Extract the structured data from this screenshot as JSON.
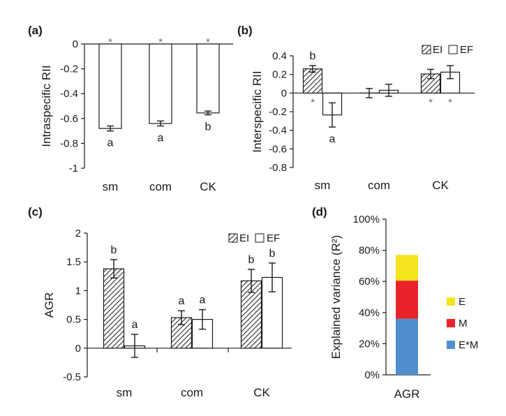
{
  "chart_data": [
    {
      "panel": "(a)",
      "type": "bar",
      "ylabel": "Intraspecific RII",
      "ylim": [
        -1,
        0
      ],
      "yticks": [
        "0",
        "-0.2",
        "-0.4",
        "-0.6",
        "-0.8",
        "-1"
      ],
      "categories": [
        "sm",
        "com",
        "CK"
      ],
      "series": [
        {
          "pattern": "open",
          "values": [
            -0.68,
            -0.64,
            -0.555
          ],
          "errors": [
            0.02,
            0.02,
            0.015
          ],
          "letters": [
            "a",
            "a",
            "b"
          ],
          "stars": [
            "*",
            "*",
            "*"
          ]
        }
      ]
    },
    {
      "panel": "(b)",
      "type": "bar",
      "ylabel": "Interspecific RII",
      "ylim": [
        -0.8,
        0.4
      ],
      "yticks": [
        "0.4",
        "0.2",
        "0",
        "-0.2",
        "-0.4",
        "-0.6",
        "-0.8"
      ],
      "categories": [
        "sm",
        "com",
        "CK"
      ],
      "legend": [
        "EI",
        "EF"
      ],
      "series": [
        {
          "name": "EI",
          "pattern": "hatched",
          "values": [
            0.26,
            0.0,
            0.205
          ],
          "errors": [
            0.035,
            0.05,
            0.05
          ],
          "letters": [
            "b",
            "",
            ""
          ],
          "stars": [
            "*",
            "",
            "*"
          ]
        },
        {
          "name": "EF",
          "pattern": "open",
          "values": [
            -0.235,
            0.03,
            0.225
          ],
          "errors": [
            0.13,
            0.065,
            0.07
          ],
          "letters": [
            "a",
            "",
            ""
          ],
          "stars": [
            "",
            "",
            "*"
          ]
        }
      ]
    },
    {
      "panel": "(c)",
      "type": "bar",
      "ylabel": "AGR",
      "ylim": [
        -0.5,
        2
      ],
      "yticks": [
        "2",
        "1.5",
        "1",
        "0.5",
        "0",
        "-0.5"
      ],
      "categories": [
        "sm",
        "com",
        "CK"
      ],
      "legend": [
        "EI",
        "EF"
      ],
      "series": [
        {
          "name": "EI",
          "pattern": "hatched",
          "values": [
            1.38,
            0.53,
            1.17
          ],
          "errors": [
            0.16,
            0.12,
            0.2
          ],
          "letters": [
            "b",
            "a",
            "b"
          ]
        },
        {
          "name": "EF",
          "pattern": "open",
          "values": [
            0.04,
            0.5,
            1.23
          ],
          "errors": [
            0.2,
            0.17,
            0.25
          ],
          "letters": [
            "a",
            "a",
            "b"
          ]
        }
      ]
    },
    {
      "panel": "(d)",
      "type": "bar",
      "stacked": true,
      "ylabel": "Explained variance (R²)",
      "ylim": [
        0,
        100
      ],
      "yticks": [
        "100%",
        "80%",
        "60%",
        "40%",
        "20%",
        "0%"
      ],
      "categories": [
        "AGR"
      ],
      "series": [
        {
          "name": "E*M",
          "color": "#4f8fcf",
          "values": [
            36
          ]
        },
        {
          "name": "M",
          "color": "#e8242a",
          "values": [
            24.5
          ]
        },
        {
          "name": "E",
          "color": "#f3e41e",
          "values": [
            16.5
          ]
        }
      ],
      "legend_order": [
        "E",
        "M",
        "E*M"
      ]
    }
  ]
}
